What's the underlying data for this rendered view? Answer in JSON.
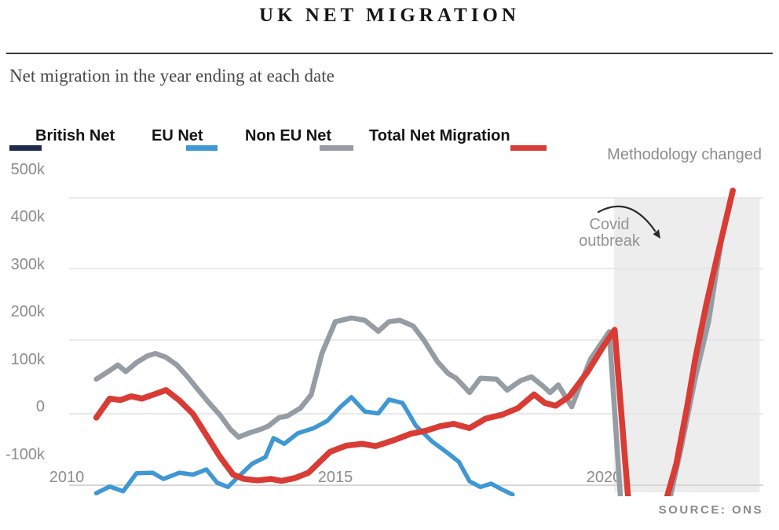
{
  "header": {
    "title": "UK NET MIGRATION",
    "subtitle": "Net migration in the year ending at each date"
  },
  "legend": [
    {
      "label": "British Net",
      "color": "#1e2b4e"
    },
    {
      "label": "EU Net",
      "color": "#3f97d4"
    },
    {
      "label": "Non EU Net",
      "color": "#959ca4"
    },
    {
      "label": "Total Net Migration",
      "color": "#d93b35"
    }
  ],
  "annotations": {
    "methodology": "Methodology changed",
    "covid_line1": "Covid",
    "covid_line2": "outbreak"
  },
  "source": "SOURCE: ONS",
  "chart_data": {
    "type": "line",
    "title": "UK NET MIGRATION",
    "subtitle": "Net migration in the year ending at each date",
    "units": "thousands of people per year (k)",
    "xlim": [
      2009.9,
      2023.0
    ],
    "ylim": [
      -188,
      517
    ],
    "grid": true,
    "legend_position": "top",
    "y_ticks": [
      {
        "label": "500k",
        "value": 500
      },
      {
        "label": "400k",
        "value": 400
      },
      {
        "label": "300k",
        "value": 300
      },
      {
        "label": "200k",
        "value": 200
      },
      {
        "label": "100k",
        "value": 100
      },
      {
        "label": "0",
        "value": 0
      },
      {
        "label": "-100k",
        "value": -100
      }
    ],
    "x_ticks": [
      {
        "label": "2010",
        "year": 2010
      },
      {
        "label": "2015",
        "year": 2015
      },
      {
        "label": "2020",
        "year": 2020
      }
    ],
    "methodology_region": {
      "start_year": 2020.19,
      "end_year": 2022.9,
      "color": "#ededed"
    },
    "series": [
      {
        "name": "British Net",
        "color": "#1e2b4e",
        "visible_in_plot": false,
        "points": []
      },
      {
        "name": "EU Net",
        "color": "#3f97d4",
        "visible_in_plot": true,
        "points": [
          [
            2010.55,
            -182
          ],
          [
            2010.8,
            -168
          ],
          [
            2011.05,
            -178
          ],
          [
            2011.3,
            -140
          ],
          [
            2011.6,
            -139
          ],
          [
            2011.8,
            -152
          ],
          [
            2012.1,
            -139
          ],
          [
            2012.35,
            -143
          ],
          [
            2012.6,
            -132
          ],
          [
            2012.8,
            -160
          ],
          [
            2013.0,
            -169
          ],
          [
            2013.2,
            -147
          ],
          [
            2013.45,
            -120
          ],
          [
            2013.7,
            -106
          ],
          [
            2013.85,
            -66
          ],
          [
            2014.05,
            -78
          ],
          [
            2014.3,
            -56
          ],
          [
            2014.6,
            -45
          ],
          [
            2014.85,
            -30
          ],
          [
            2015.1,
            0
          ],
          [
            2015.3,
            20
          ],
          [
            2015.55,
            -10
          ],
          [
            2015.8,
            -14
          ],
          [
            2016.0,
            15
          ],
          [
            2016.25,
            8
          ],
          [
            2016.5,
            -40
          ],
          [
            2016.8,
            -73
          ],
          [
            2017.1,
            -98
          ],
          [
            2017.3,
            -116
          ],
          [
            2017.5,
            -157
          ],
          [
            2017.7,
            -169
          ],
          [
            2017.9,
            -162
          ],
          [
            2018.1,
            -174
          ],
          [
            2018.3,
            -185
          ]
        ]
      },
      {
        "name": "Non EU Net",
        "color": "#959ca4",
        "visible_in_plot": true,
        "points": [
          [
            2010.55,
            58
          ],
          [
            2010.8,
            76
          ],
          [
            2010.95,
            88
          ],
          [
            2011.1,
            74
          ],
          [
            2011.3,
            93
          ],
          [
            2011.5,
            107
          ],
          [
            2011.65,
            112
          ],
          [
            2011.85,
            104
          ],
          [
            2012.05,
            88
          ],
          [
            2012.25,
            63
          ],
          [
            2012.45,
            35
          ],
          [
            2012.65,
            8
          ],
          [
            2012.85,
            -17
          ],
          [
            2013.05,
            -48
          ],
          [
            2013.2,
            -64
          ],
          [
            2013.4,
            -55
          ],
          [
            2013.6,
            -48
          ],
          [
            2013.75,
            -41
          ],
          [
            2013.95,
            -23
          ],
          [
            2014.1,
            -20
          ],
          [
            2014.35,
            -3
          ],
          [
            2014.55,
            25
          ],
          [
            2014.75,
            112
          ],
          [
            2015.0,
            179
          ],
          [
            2015.3,
            187
          ],
          [
            2015.55,
            182
          ],
          [
            2015.8,
            159
          ],
          [
            2016.0,
            179
          ],
          [
            2016.2,
            182
          ],
          [
            2016.45,
            170
          ],
          [
            2016.65,
            140
          ],
          [
            2016.9,
            95
          ],
          [
            2017.1,
            70
          ],
          [
            2017.25,
            60
          ],
          [
            2017.5,
            30
          ],
          [
            2017.7,
            60
          ],
          [
            2018.0,
            58
          ],
          [
            2018.2,
            35
          ],
          [
            2018.45,
            55
          ],
          [
            2018.65,
            63
          ],
          [
            2018.85,
            45
          ],
          [
            2019.0,
            30
          ],
          [
            2019.15,
            46
          ],
          [
            2019.4,
            0
          ],
          [
            2019.75,
            100
          ],
          [
            2020.1,
            158
          ],
          [
            2020.35,
            -260
          ],
          [
            2021.1,
            -260
          ],
          [
            2021.45,
            -80
          ],
          [
            2021.7,
            60
          ],
          [
            2021.95,
            180
          ],
          [
            2022.2,
            360
          ]
        ]
      },
      {
        "name": "Total Net Migration",
        "color": "#d93b35",
        "visible_in_plot": true,
        "points": [
          [
            2010.55,
            -23
          ],
          [
            2010.8,
            17
          ],
          [
            2011.0,
            14
          ],
          [
            2011.2,
            22
          ],
          [
            2011.4,
            17
          ],
          [
            2011.6,
            25
          ],
          [
            2011.85,
            35
          ],
          [
            2012.1,
            13
          ],
          [
            2012.35,
            -15
          ],
          [
            2012.6,
            -60
          ],
          [
            2012.85,
            -105
          ],
          [
            2013.1,
            -143
          ],
          [
            2013.3,
            -152
          ],
          [
            2013.55,
            -155
          ],
          [
            2013.8,
            -152
          ],
          [
            2014.0,
            -156
          ],
          [
            2014.25,
            -150
          ],
          [
            2014.5,
            -139
          ],
          [
            2014.9,
            -95
          ],
          [
            2015.2,
            -82
          ],
          [
            2015.5,
            -78
          ],
          [
            2015.75,
            -83
          ],
          [
            2016.1,
            -70
          ],
          [
            2016.4,
            -57
          ],
          [
            2016.7,
            -50
          ],
          [
            2016.95,
            -41
          ],
          [
            2017.2,
            -36
          ],
          [
            2017.5,
            -45
          ],
          [
            2017.8,
            -25
          ],
          [
            2018.1,
            -17
          ],
          [
            2018.4,
            -3
          ],
          [
            2018.7,
            26
          ],
          [
            2018.9,
            8
          ],
          [
            2019.1,
            2
          ],
          [
            2019.35,
            21
          ],
          [
            2019.7,
            74
          ],
          [
            2020.0,
            129
          ],
          [
            2020.2,
            162
          ],
          [
            2020.5,
            -260
          ],
          [
            2021.0,
            -260
          ],
          [
            2021.35,
            -120
          ],
          [
            2021.55,
            0
          ],
          [
            2021.7,
            100
          ],
          [
            2021.9,
            212
          ],
          [
            2022.1,
            311
          ],
          [
            2022.4,
            455
          ]
        ]
      }
    ]
  }
}
